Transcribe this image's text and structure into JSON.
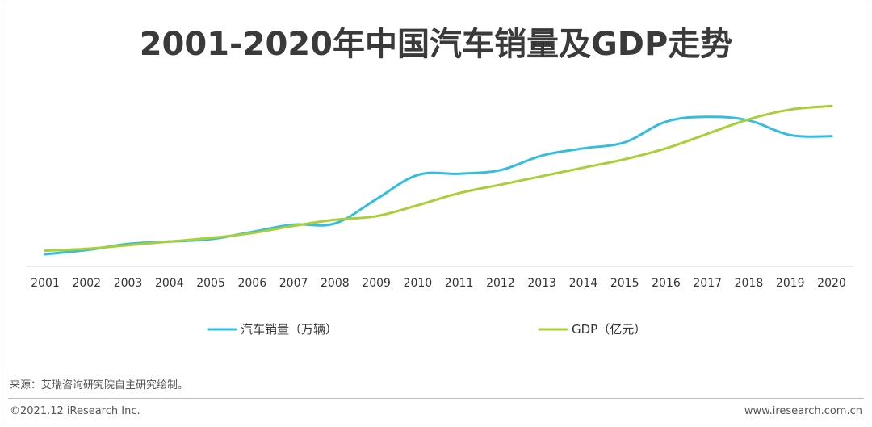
{
  "title": "2001-2020年中国汽车销量及GDP走势",
  "source": "来源：艾瑞咨询研究院自主研究绘制。",
  "footer": {
    "copyright": "©2021.12 iResearch Inc.",
    "website": "www.iresearch.com.cn"
  },
  "chart_data": {
    "type": "line",
    "title": "2001-2020年中国汽车销量及GDP走势",
    "x": [
      "2001",
      "2002",
      "2003",
      "2004",
      "2005",
      "2006",
      "2007",
      "2008",
      "2009",
      "2010",
      "2011",
      "2012",
      "2013",
      "2014",
      "2015",
      "2016",
      "2017",
      "2018",
      "2019",
      "2020"
    ],
    "value_axis": "none (values normalized 0-1, no y tick labels shown)",
    "grid": false,
    "legend": "bottom",
    "series": [
      {
        "name": "汽车销量（万辆）",
        "color": "#33bde0",
        "values": [
          0.0,
          0.035,
          0.085,
          0.105,
          0.125,
          0.185,
          0.245,
          0.255,
          0.455,
          0.655,
          0.665,
          0.695,
          0.815,
          0.875,
          0.925,
          1.095,
          1.135,
          1.105,
          0.985,
          0.975
        ]
      },
      {
        "name": "GDP（亿元）",
        "color": "#a9cf38",
        "values": [
          0.03,
          0.045,
          0.075,
          0.105,
          0.135,
          0.175,
          0.235,
          0.285,
          0.315,
          0.405,
          0.505,
          0.575,
          0.645,
          0.715,
          0.785,
          0.875,
          0.995,
          1.115,
          1.195,
          1.225
        ]
      }
    ]
  }
}
